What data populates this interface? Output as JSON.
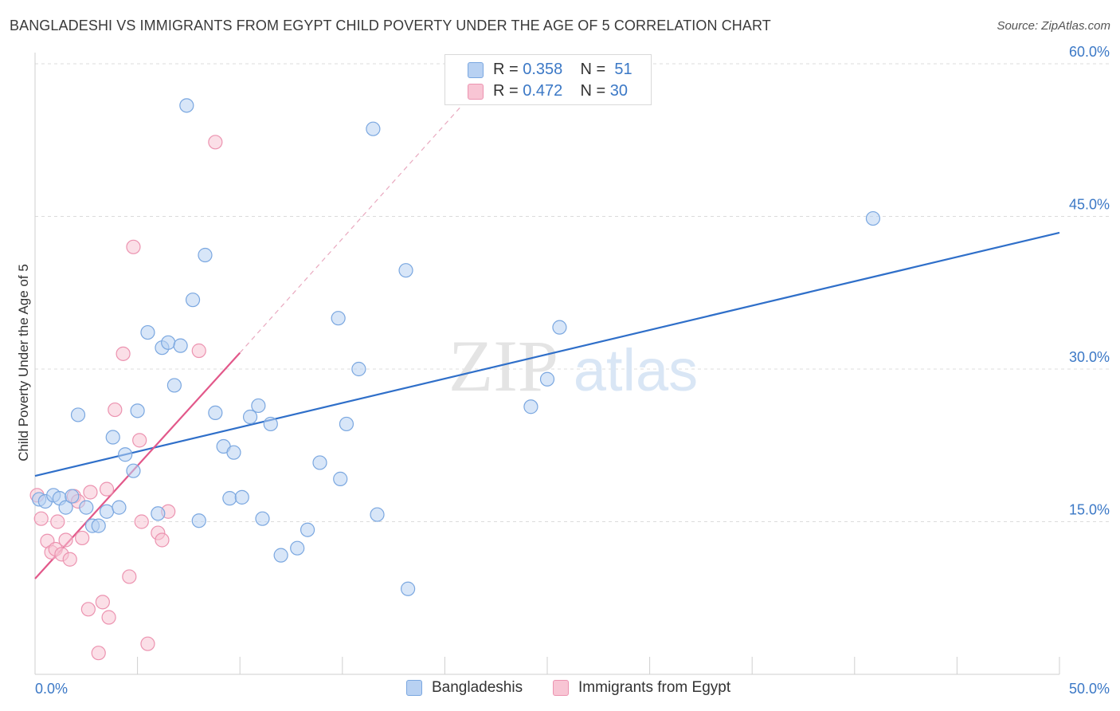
{
  "header": {
    "title": "BANGLADESHI VS IMMIGRANTS FROM EGYPT CHILD POVERTY UNDER THE AGE OF 5 CORRELATION CHART",
    "source": "Source: ZipAtlas.com"
  },
  "legend": {
    "rows": [
      {
        "r_label": "R = ",
        "r_value": "0.358",
        "n_label": "N = ",
        "n_value": "51"
      },
      {
        "r_label": "R = ",
        "r_value": "0.472",
        "n_label": "N = ",
        "n_value": "30"
      }
    ]
  },
  "watermark": {
    "zip": "ZIP",
    "atlas": "atlas"
  },
  "colors": {
    "blue_fill": "#b8d1f2",
    "blue_stroke": "#7aa7e0",
    "blue_line": "#2f6fc9",
    "pink_fill": "#f8c5d4",
    "pink_stroke": "#ec93b0",
    "pink_line": "#e2588a",
    "tick_label": "#3b78c6",
    "grid": "#dcdcdc"
  },
  "chart_data": {
    "type": "scatter",
    "title": "BANGLADESHI VS IMMIGRANTS FROM EGYPT CHILD POVERTY UNDER THE AGE OF 5 CORRELATION CHART",
    "xlabel": "",
    "ylabel": "Child Poverty Under the Age of 5",
    "xlim": [
      0,
      50
    ],
    "ylim": [
      0,
      60
    ],
    "x_tick_labels": [
      "0.0%",
      "50.0%"
    ],
    "y_ticks": [
      15,
      30,
      45,
      60
    ],
    "y_tick_labels": [
      "15.0%",
      "30.0%",
      "45.0%",
      "60.0%"
    ],
    "grid": true,
    "legend_position": "top-center",
    "series": [
      {
        "name": "Bangladeshis",
        "color": "#b8d1f2",
        "trend": {
          "x": [
            0,
            50
          ],
          "y": [
            19.5,
            43.4
          ],
          "style": "solid"
        },
        "points": [
          [
            0.2,
            17.2
          ],
          [
            0.5,
            17.0
          ],
          [
            0.9,
            17.6
          ],
          [
            1.2,
            17.3
          ],
          [
            1.5,
            16.4
          ],
          [
            1.8,
            17.5
          ],
          [
            2.1,
            25.5
          ],
          [
            2.5,
            16.4
          ],
          [
            2.8,
            14.6
          ],
          [
            3.1,
            14.6
          ],
          [
            3.5,
            16.0
          ],
          [
            3.8,
            23.3
          ],
          [
            4.1,
            16.4
          ],
          [
            4.4,
            21.6
          ],
          [
            4.8,
            20.0
          ],
          [
            5.0,
            25.9
          ],
          [
            5.5,
            33.6
          ],
          [
            6.0,
            15.8
          ],
          [
            6.2,
            32.1
          ],
          [
            6.5,
            32.6
          ],
          [
            6.8,
            28.4
          ],
          [
            7.1,
            32.3
          ],
          [
            7.4,
            55.9
          ],
          [
            7.7,
            36.8
          ],
          [
            8.0,
            15.1
          ],
          [
            8.3,
            41.2
          ],
          [
            8.8,
            25.7
          ],
          [
            9.2,
            22.4
          ],
          [
            9.5,
            17.3
          ],
          [
            9.7,
            21.8
          ],
          [
            10.1,
            17.4
          ],
          [
            10.5,
            25.3
          ],
          [
            10.9,
            26.4
          ],
          [
            11.1,
            15.3
          ],
          [
            11.5,
            24.6
          ],
          [
            12.0,
            11.7
          ],
          [
            12.8,
            12.4
          ],
          [
            13.3,
            14.2
          ],
          [
            13.9,
            20.8
          ],
          [
            14.8,
            35.0
          ],
          [
            14.9,
            19.2
          ],
          [
            15.2,
            24.6
          ],
          [
            15.8,
            30.0
          ],
          [
            16.5,
            53.6
          ],
          [
            16.7,
            15.7
          ],
          [
            18.1,
            39.7
          ],
          [
            18.2,
            8.4
          ],
          [
            24.2,
            26.3
          ],
          [
            25.0,
            29.0
          ],
          [
            25.6,
            34.1
          ],
          [
            40.9,
            44.8
          ]
        ]
      },
      {
        "name": "Immigrants from Egypt",
        "color": "#f8c5d4",
        "trend": {
          "x": [
            0,
            10
          ],
          "y": [
            9.4,
            31.6
          ],
          "style": "solid",
          "extended": {
            "x": [
              10,
              21.1
            ],
            "y": [
              31.6,
              56.5
            ],
            "style": "dashed"
          }
        },
        "points": [
          [
            0.1,
            17.6
          ],
          [
            0.3,
            15.3
          ],
          [
            0.6,
            13.1
          ],
          [
            0.8,
            12.0
          ],
          [
            1.0,
            12.3
          ],
          [
            1.1,
            15.0
          ],
          [
            1.3,
            11.8
          ],
          [
            1.5,
            13.2
          ],
          [
            1.7,
            11.3
          ],
          [
            1.9,
            17.5
          ],
          [
            2.1,
            17.0
          ],
          [
            2.3,
            13.4
          ],
          [
            2.6,
            6.4
          ],
          [
            2.7,
            17.9
          ],
          [
            3.1,
            2.1
          ],
          [
            3.3,
            7.1
          ],
          [
            3.5,
            18.2
          ],
          [
            3.6,
            5.6
          ],
          [
            3.9,
            26.0
          ],
          [
            4.3,
            31.5
          ],
          [
            4.6,
            9.6
          ],
          [
            4.8,
            42.0
          ],
          [
            5.1,
            23.0
          ],
          [
            5.2,
            15.0
          ],
          [
            5.5,
            3.0
          ],
          [
            6.0,
            13.9
          ],
          [
            6.2,
            13.2
          ],
          [
            6.5,
            16.0
          ],
          [
            8.0,
            31.8
          ],
          [
            8.8,
            52.3
          ]
        ]
      }
    ]
  }
}
